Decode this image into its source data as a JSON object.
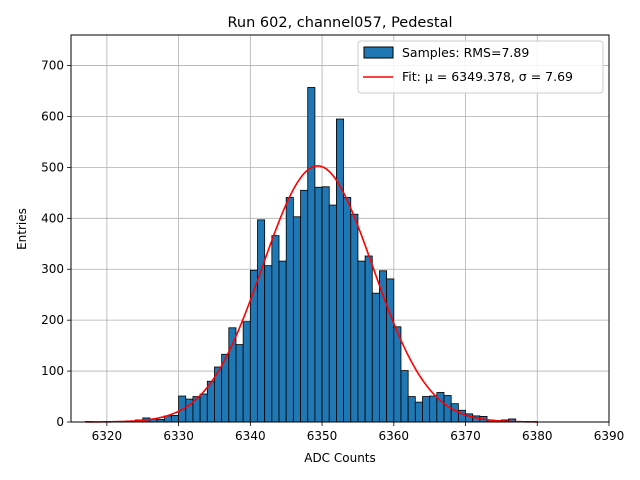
{
  "chart_data": {
    "type": "bar",
    "title": "Run 602, channel057, Pedestal",
    "xlabel": "ADC Counts",
    "ylabel": "Entries",
    "xlim": [
      6315,
      6390
    ],
    "ylim": [
      0,
      760
    ],
    "grid": true,
    "x_ticks": [
      6320,
      6330,
      6340,
      6350,
      6360,
      6370,
      6380,
      6390
    ],
    "y_ticks": [
      0,
      100,
      200,
      300,
      400,
      500,
      600,
      700
    ],
    "bin_width": 1,
    "histogram": {
      "name": "Samples: RMS=7.89",
      "color": "#1f77b4",
      "edge_color": "#000000",
      "bin_starts": [
        6317,
        6318,
        6319,
        6320,
        6321,
        6322,
        6323,
        6324,
        6325,
        6326,
        6327,
        6328,
        6329,
        6330,
        6331,
        6332,
        6333,
        6334,
        6335,
        6336,
        6337,
        6338,
        6339,
        6340,
        6341,
        6342,
        6343,
        6344,
        6345,
        6346,
        6347,
        6348,
        6349,
        6350,
        6351,
        6352,
        6353,
        6354,
        6355,
        6356,
        6357,
        6358,
        6359,
        6360,
        6361,
        6362,
        6363,
        6364,
        6365,
        6366,
        6367,
        6368,
        6369,
        6370,
        6371,
        6372,
        6373,
        6374,
        6375,
        6376,
        6377,
        6378,
        6379
      ],
      "counts": [
        1,
        0,
        0,
        0,
        1,
        1,
        2,
        4,
        8,
        6,
        5,
        12,
        13,
        51,
        45,
        50,
        55,
        80,
        108,
        133,
        185,
        152,
        197,
        298,
        397,
        307,
        366,
        316,
        441,
        403,
        455,
        657,
        461,
        462,
        426,
        595,
        441,
        408,
        316,
        326,
        253,
        297,
        281,
        187,
        101,
        50,
        39,
        50,
        51,
        58,
        52,
        36,
        23,
        16,
        12,
        11,
        4,
        3,
        4,
        6,
        1,
        1,
        1
      ]
    },
    "fit": {
      "name": "Fit: μ = 6349.378, σ = 7.69",
      "color": "#ff0000",
      "mu": 6349.378,
      "sigma": 7.69,
      "amplitude": 503,
      "x_range": [
        6317,
        6380
      ]
    }
  }
}
